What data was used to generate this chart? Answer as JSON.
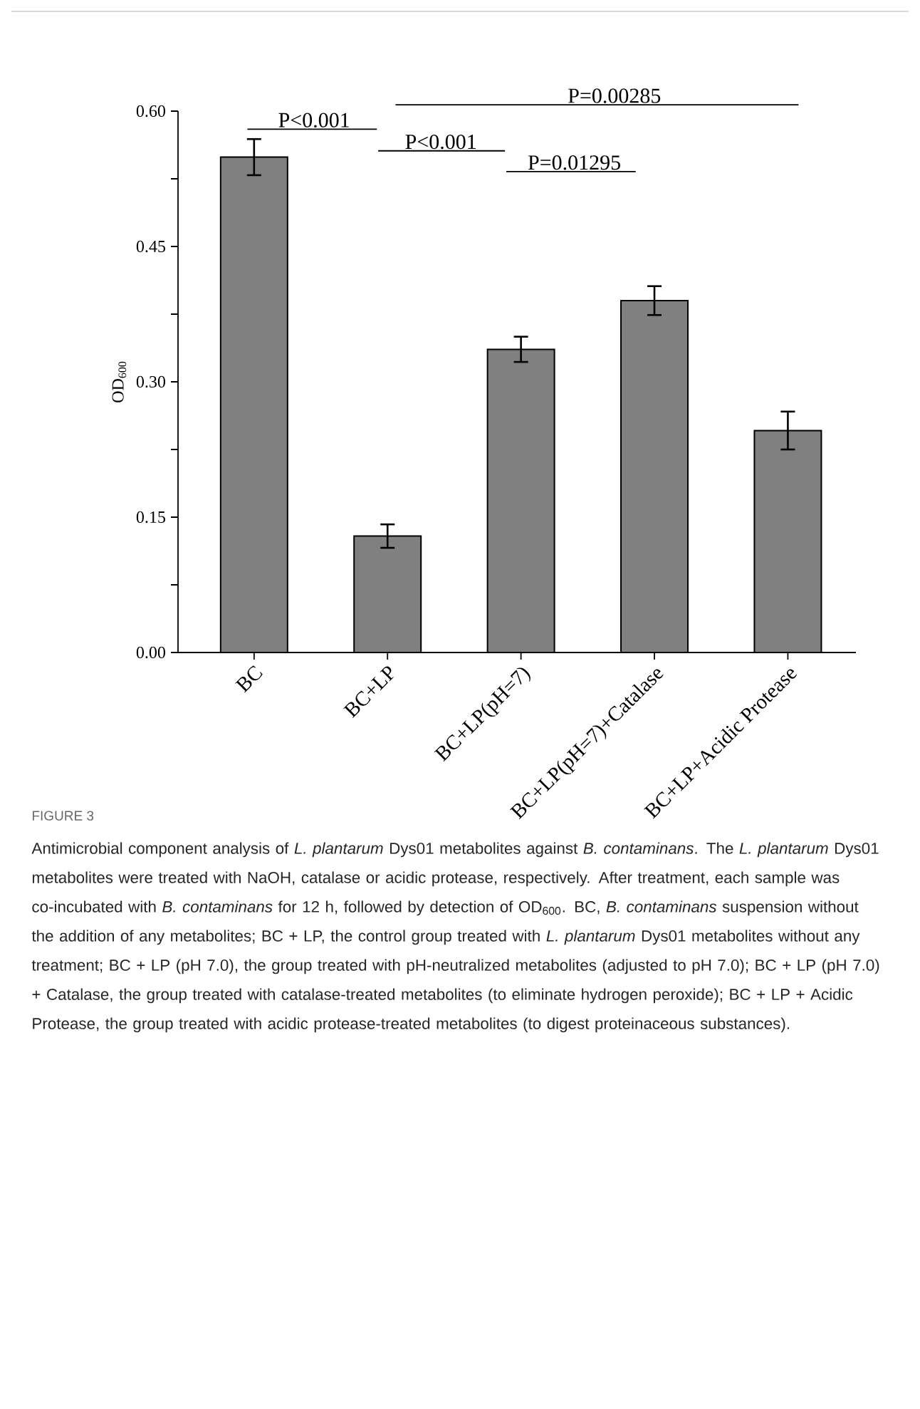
{
  "chart_data": {
    "type": "bar",
    "ylabel": "OD$_{600}$",
    "categories": [
      "BC",
      "BC+LP",
      "BC+LP(pH=7)",
      "BC+LP(pH=7)+Catalase",
      "BC+LP+Acidic Protease"
    ],
    "values": [
      0.549,
      0.129,
      0.336,
      0.39,
      0.246
    ],
    "errors": [
      0.02,
      0.013,
      0.014,
      0.016,
      0.021
    ],
    "color": "#808080",
    "ylim": [
      0,
      0.6
    ],
    "yticks": [
      {
        "value": 0,
        "label": "0.00"
      },
      {
        "value": 0.075,
        "label": null
      },
      0.15,
      {
        "value": 0.225,
        "label": null
      },
      {
        "value": 0.3,
        "label": "0.30"
      },
      {
        "value": 0.375,
        "label": null
      },
      0.45,
      {
        "value": 0.525,
        "label": null
      },
      {
        "value": 0.6,
        "label": "0.60"
      }
    ],
    "annotations": [
      "P<0.001",
      "P<0.001",
      "P=0.01295",
      "P=0.00285",
      "FIGURE 3",
      "Antimicrobial component analysis of *L. plantarum* Dys01 metabolites against *B. contaminans*. The *L. plantarum* Dys01 metabolites were treated with NaOH, catalase or acidic protease, respectively. After treatment, each sample was co-incubated with *B. contaminans* for 12 h, followed by detection of OD$_{600}$. BC, *B. contaminans* suspension without the addition of any metabolites; BC + LP, the control group treated with *L. plantarum* Dys01 metabolites without any treatment; BC + LP (pH 7.0), the group treated with pH-neutralized metabolites (adjusted to pH 7.0); BC + LP (pH 7.0) + Catalase, the group treated with catalase-treated metabolites (to eliminate hydrogen peroxide); BC + LP + Acidic Protease, the group treated with acidic protease-treated metabolites (to digest proteinaceous substances)."
    ]
  }
}
